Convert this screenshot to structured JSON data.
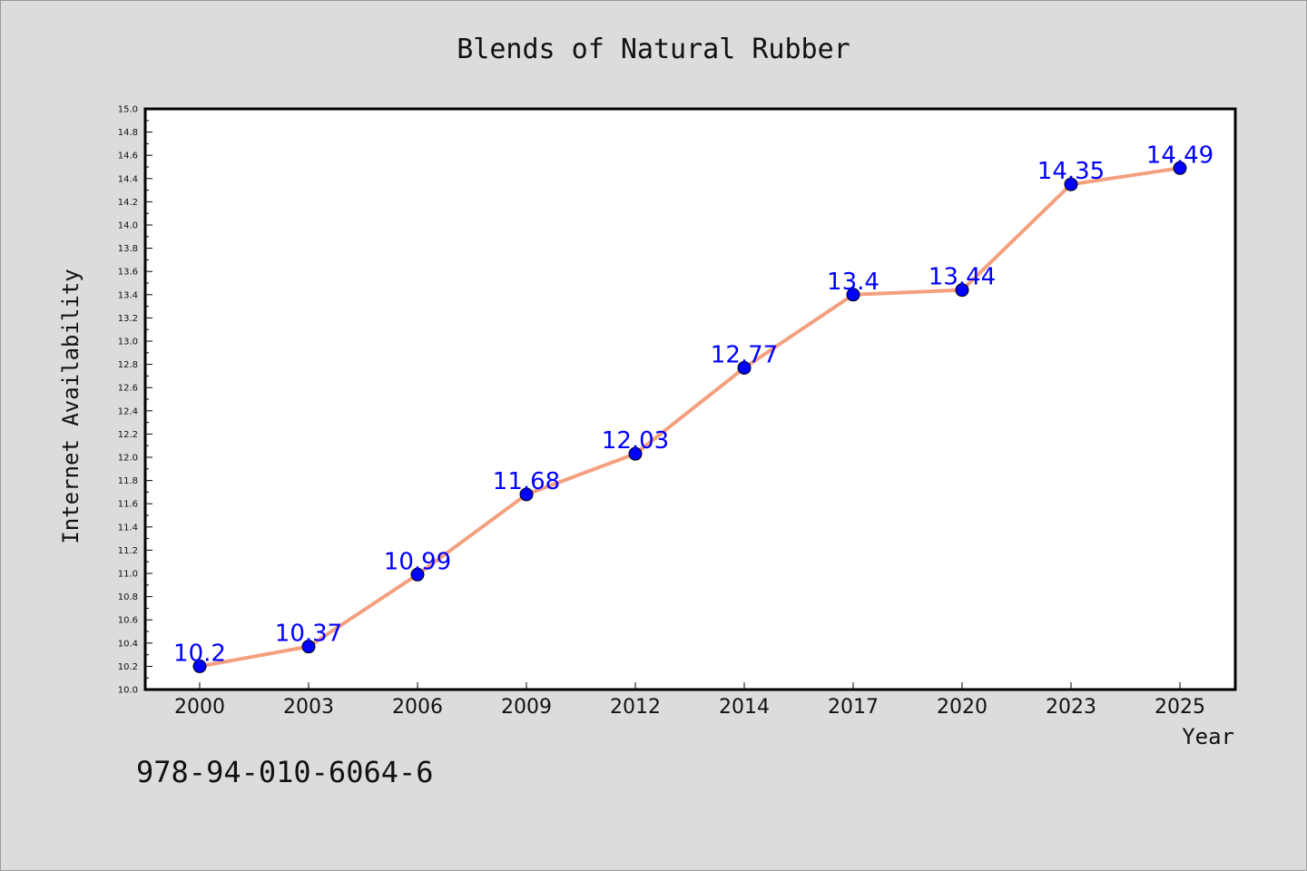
{
  "chart_data": {
    "type": "line",
    "title": "Blends of Natural Rubber",
    "xlabel": "Year",
    "ylabel": "Internet Availability",
    "categories": [
      "2000",
      "2003",
      "2006",
      "2009",
      "2012",
      "2014",
      "2017",
      "2020",
      "2023",
      "2025"
    ],
    "series": [
      {
        "values": [
          10.2,
          10.37,
          10.99,
          11.68,
          12.03,
          12.77,
          13.4,
          13.44,
          14.35,
          14.49
        ],
        "labels": [
          "10.2",
          "10.37",
          "10.99",
          "11.68",
          "12.03",
          "12.77",
          "13.4",
          "13.44",
          "14.35",
          "14.49"
        ],
        "line_color": "#f4a07f",
        "marker_color": "#0000ff",
        "label_color": "#0000ff"
      }
    ],
    "ylim": [
      10.0,
      15.0
    ],
    "yticks": [
      "10.0",
      "10.2",
      "10.4",
      "10.6",
      "10.8",
      "11.0",
      "11.2",
      "11.4",
      "11.6",
      "11.8",
      "12.0",
      "12.2",
      "12.4",
      "12.6",
      "12.8",
      "13.0",
      "13.2",
      "13.4",
      "13.6",
      "13.8",
      "14.0",
      "14.2",
      "14.4",
      "14.6",
      "14.8",
      "15.0"
    ],
    "grid": false,
    "legend": "none"
  },
  "footer_text": "978-94-010-6064-6"
}
